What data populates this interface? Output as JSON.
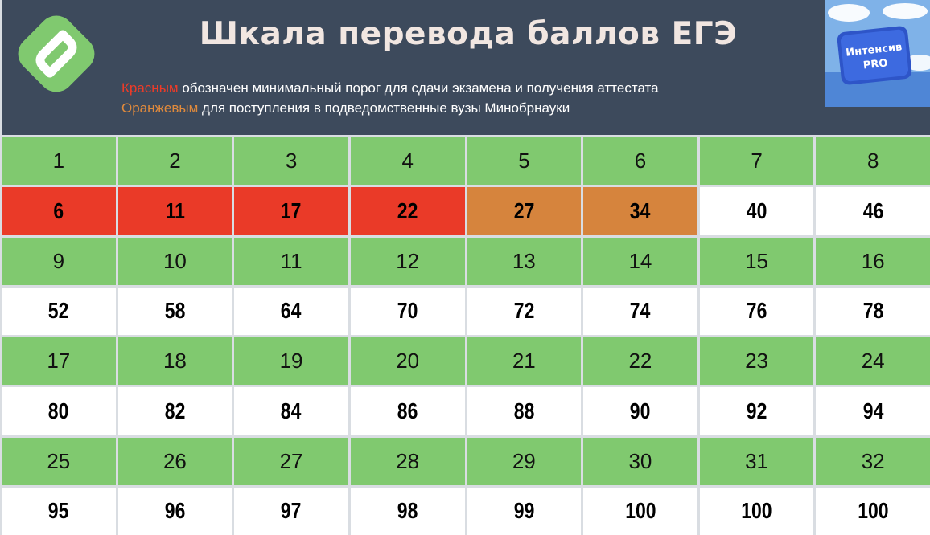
{
  "header": {
    "title": "Шкала перевода баллов ЕГЭ",
    "legend_line1_colored": "Красным",
    "legend_line1_rest": " обозначен минимальный порог для сдачи экзамена и получения аттестата",
    "legend_line2_colored": "Оранжевым",
    "legend_line2_rest": " для поступления в подведомственные вузы Минобрнауки",
    "badge_line1": "Интенсив",
    "badge_line2": "PRO"
  },
  "colors": {
    "header_bg": "#3d4a5c",
    "primary_cell": "#80c96f",
    "score_cell": "#ffffff",
    "threshold_red": "#ea3a28",
    "threshold_orange": "#d6843d",
    "logo_green": "#80c96f"
  },
  "rows": [
    {
      "primary": [
        "1",
        "2",
        "3",
        "4",
        "5",
        "6",
        "7",
        "8"
      ],
      "scores": [
        "6",
        "11",
        "17",
        "22",
        "27",
        "34",
        "40",
        "46"
      ],
      "highlights": [
        "red",
        "red",
        "red",
        "red",
        "orange",
        "orange",
        "",
        ""
      ]
    },
    {
      "primary": [
        "9",
        "10",
        "11",
        "12",
        "13",
        "14",
        "15",
        "16"
      ],
      "scores": [
        "52",
        "58",
        "64",
        "70",
        "72",
        "74",
        "76",
        "78"
      ],
      "highlights": [
        "",
        "",
        "",
        "",
        "",
        "",
        "",
        ""
      ]
    },
    {
      "primary": [
        "17",
        "18",
        "19",
        "20",
        "21",
        "22",
        "23",
        "24"
      ],
      "scores": [
        "80",
        "82",
        "84",
        "86",
        "88",
        "90",
        "92",
        "94"
      ],
      "highlights": [
        "",
        "",
        "",
        "",
        "",
        "",
        "",
        ""
      ]
    },
    {
      "primary": [
        "25",
        "26",
        "27",
        "28",
        "29",
        "30",
        "31",
        "32"
      ],
      "scores": [
        "95",
        "96",
        "97",
        "98",
        "99",
        "100",
        "100",
        "100"
      ],
      "highlights": [
        "",
        "",
        "",
        "",
        "",
        "",
        "",
        ""
      ]
    }
  ]
}
